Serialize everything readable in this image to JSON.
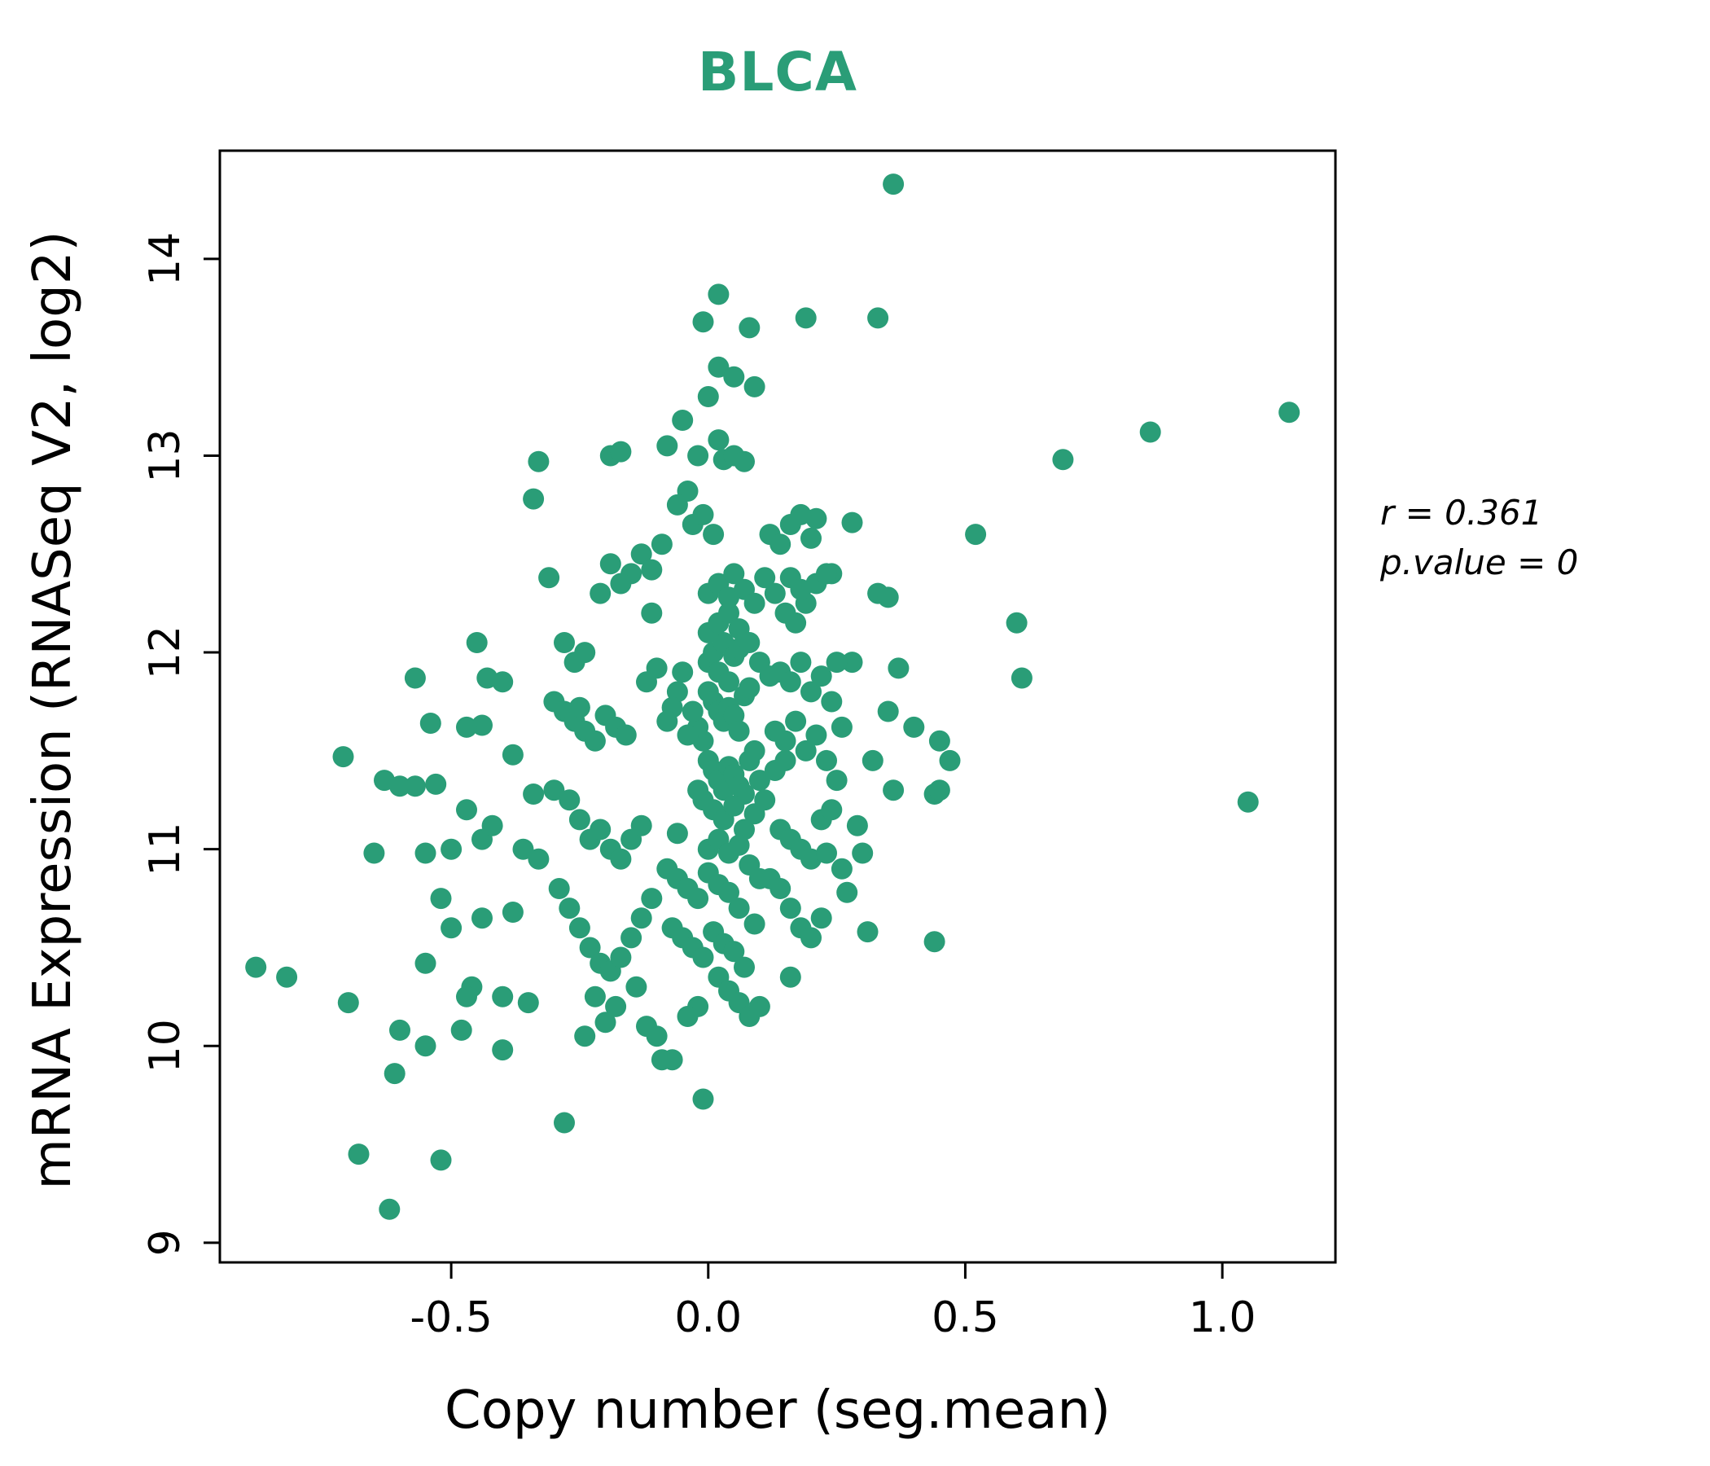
{
  "chart_data": {
    "type": "scatter",
    "title": "BLCA",
    "xlabel": "Copy number (seg.mean)",
    "ylabel": "mRNA Expression (RNASeq V2, log2)",
    "annotation_lines": [
      "r = 0.361",
      "p.value = 0"
    ],
    "r": 0.361,
    "p_value": 0,
    "point_color": "#2a9d77",
    "title_color": "#2a9d77",
    "xlim": [
      -0.95,
      1.22
    ],
    "ylim": [
      8.9,
      14.55
    ],
    "xticks": [
      -0.5,
      0.0,
      0.5,
      1.0
    ],
    "yticks": [
      9,
      10,
      11,
      12,
      13,
      14
    ],
    "grid": false,
    "legend": "none",
    "points": [
      [
        0.36,
        14.38
      ],
      [
        0.02,
        13.82
      ],
      [
        -0.01,
        13.68
      ],
      [
        0.19,
        13.7
      ],
      [
        0.33,
        13.7
      ],
      [
        0.08,
        13.65
      ],
      [
        0.02,
        13.45
      ],
      [
        0.05,
        13.4
      ],
      [
        0.09,
        13.35
      ],
      [
        1.13,
        13.22
      ],
      [
        0.86,
        13.12
      ],
      [
        0.69,
        12.98
      ],
      [
        -0.33,
        12.97
      ],
      [
        -0.34,
        12.78
      ],
      [
        -0.19,
        13.0
      ],
      [
        -0.17,
        13.02
      ],
      [
        -0.08,
        13.05
      ],
      [
        -0.02,
        13.0
      ],
      [
        0.02,
        13.08
      ],
      [
        0.03,
        12.98
      ],
      [
        0.05,
        13.0
      ],
      [
        0.07,
        12.97
      ],
      [
        -0.05,
        13.18
      ],
      [
        0.0,
        13.3
      ],
      [
        -0.04,
        12.82
      ],
      [
        -0.06,
        12.75
      ],
      [
        -0.03,
        12.65
      ],
      [
        -0.01,
        12.7
      ],
      [
        0.01,
        12.6
      ],
      [
        0.52,
        12.6
      ],
      [
        0.6,
        12.15
      ],
      [
        0.61,
        11.87
      ],
      [
        1.05,
        11.24
      ],
      [
        0.44,
        10.53
      ],
      [
        0.31,
        10.58
      ],
      [
        0.44,
        11.28
      ],
      [
        0.45,
        11.55
      ],
      [
        0.47,
        11.45
      ],
      [
        0.35,
        11.7
      ],
      [
        0.33,
        12.3
      ],
      [
        0.28,
        12.66
      ],
      [
        0.24,
        12.4
      ],
      [
        0.21,
        12.68
      ],
      [
        0.35,
        12.28
      ],
      [
        0.28,
        11.95
      ],
      [
        0.32,
        11.45
      ],
      [
        0.36,
        11.3
      ],
      [
        0.4,
        11.62
      ],
      [
        0.3,
        10.98
      ],
      [
        0.26,
        10.9
      ],
      [
        0.25,
        11.95
      ],
      [
        -0.71,
        11.47
      ],
      [
        -0.57,
        11.87
      ],
      [
        -0.54,
        11.64
      ],
      [
        -0.45,
        12.05
      ],
      [
        -0.44,
        11.63
      ],
      [
        -0.57,
        11.32
      ],
      [
        -0.53,
        11.33
      ],
      [
        -0.47,
        11.2
      ],
      [
        -0.5,
        11.0
      ],
      [
        -0.55,
        10.98
      ],
      [
        -0.44,
        11.05
      ],
      [
        -0.42,
        11.12
      ],
      [
        -0.38,
        11.48
      ],
      [
        -0.63,
        11.35
      ],
      [
        -0.6,
        11.32
      ],
      [
        -0.65,
        10.98
      ],
      [
        -0.52,
        10.75
      ],
      [
        -0.5,
        10.6
      ],
      [
        -0.55,
        10.42
      ],
      [
        -0.6,
        10.08
      ],
      [
        -0.47,
        11.62
      ],
      [
        -0.88,
        10.4
      ],
      [
        -0.82,
        10.35
      ],
      [
        -0.7,
        10.22
      ],
      [
        -0.68,
        9.45
      ],
      [
        -0.62,
        9.17
      ],
      [
        -0.61,
        9.86
      ],
      [
        -0.52,
        9.42
      ],
      [
        -0.55,
        10.0
      ],
      [
        -0.48,
        10.08
      ],
      [
        -0.46,
        10.3
      ],
      [
        -0.47,
        10.25
      ],
      [
        -0.4,
        9.98
      ],
      [
        -0.28,
        9.61
      ],
      [
        -0.01,
        9.73
      ],
      [
        -0.09,
        9.93
      ],
      [
        -0.12,
        10.1
      ],
      [
        -0.1,
        10.05
      ],
      [
        -0.24,
        10.05
      ],
      [
        -0.2,
        10.12
      ],
      [
        -0.35,
        10.22
      ],
      [
        -0.4,
        10.25
      ],
      [
        -0.36,
        11.0
      ],
      [
        -0.33,
        10.95
      ],
      [
        -0.38,
        10.68
      ],
      [
        -0.44,
        10.65
      ],
      [
        0.0,
        11.95
      ],
      [
        0.01,
        12.0
      ],
      [
        0.02,
        11.9
      ],
      [
        0.03,
        12.05
      ],
      [
        0.04,
        11.85
      ],
      [
        0.05,
        11.98
      ],
      [
        0.06,
        12.02
      ],
      [
        0.0,
        11.8
      ],
      [
        0.01,
        11.75
      ],
      [
        0.02,
        11.7
      ],
      [
        0.03,
        11.65
      ],
      [
        0.04,
        11.72
      ],
      [
        0.05,
        11.68
      ],
      [
        0.06,
        11.6
      ],
      [
        0.07,
        11.78
      ],
      [
        0.08,
        11.82
      ],
      [
        -0.01,
        11.55
      ],
      [
        -0.02,
        11.62
      ],
      [
        -0.03,
        11.7
      ],
      [
        -0.04,
        11.58
      ],
      [
        0.0,
        11.45
      ],
      [
        0.01,
        11.4
      ],
      [
        0.02,
        11.35
      ],
      [
        0.03,
        11.3
      ],
      [
        0.04,
        11.42
      ],
      [
        0.05,
        11.38
      ],
      [
        0.06,
        11.32
      ],
      [
        0.07,
        11.28
      ],
      [
        0.08,
        11.45
      ],
      [
        0.09,
        11.5
      ],
      [
        0.1,
        11.35
      ],
      [
        -0.01,
        11.25
      ],
      [
        -0.02,
        11.3
      ],
      [
        0.0,
        12.1
      ],
      [
        0.02,
        12.15
      ],
      [
        0.04,
        12.2
      ],
      [
        0.06,
        12.12
      ],
      [
        0.08,
        12.05
      ],
      [
        0.1,
        11.95
      ],
      [
        0.12,
        11.88
      ],
      [
        -0.05,
        11.9
      ],
      [
        -0.06,
        11.8
      ],
      [
        -0.07,
        11.72
      ],
      [
        -0.08,
        11.65
      ],
      [
        0.01,
        11.2
      ],
      [
        0.03,
        11.15
      ],
      [
        0.05,
        11.22
      ],
      [
        0.07,
        11.1
      ],
      [
        0.09,
        11.18
      ],
      [
        0.11,
        11.25
      ],
      [
        0.13,
        11.4
      ],
      [
        0.15,
        11.45
      ],
      [
        0.0,
        12.3
      ],
      [
        0.02,
        12.35
      ],
      [
        0.04,
        12.28
      ],
      [
        0.05,
        12.4
      ],
      [
        0.07,
        12.32
      ],
      [
        0.09,
        12.25
      ],
      [
        0.11,
        12.38
      ],
      [
        0.13,
        12.3
      ],
      [
        -0.3,
        11.75
      ],
      [
        -0.28,
        11.7
      ],
      [
        -0.26,
        11.65
      ],
      [
        -0.25,
        11.72
      ],
      [
        -0.24,
        11.6
      ],
      [
        -0.22,
        11.55
      ],
      [
        -0.2,
        11.68
      ],
      [
        -0.18,
        11.62
      ],
      [
        -0.16,
        11.58
      ],
      [
        -0.15,
        12.4
      ],
      [
        -0.17,
        12.35
      ],
      [
        -0.19,
        12.45
      ],
      [
        -0.21,
        12.3
      ],
      [
        -0.13,
        12.5
      ],
      [
        -0.11,
        12.42
      ],
      [
        -0.28,
        12.05
      ],
      [
        -0.26,
        11.95
      ],
      [
        -0.24,
        12.0
      ],
      [
        -0.3,
        11.3
      ],
      [
        -0.27,
        11.25
      ],
      [
        -0.25,
        11.15
      ],
      [
        -0.23,
        11.05
      ],
      [
        -0.21,
        11.1
      ],
      [
        -0.19,
        11.0
      ],
      [
        -0.17,
        10.95
      ],
      [
        -0.15,
        11.05
      ],
      [
        -0.13,
        11.12
      ],
      [
        -0.29,
        10.8
      ],
      [
        -0.27,
        10.7
      ],
      [
        -0.25,
        10.6
      ],
      [
        -0.23,
        10.5
      ],
      [
        -0.21,
        10.42
      ],
      [
        -0.19,
        10.38
      ],
      [
        -0.17,
        10.45
      ],
      [
        -0.15,
        10.55
      ],
      [
        -0.13,
        10.65
      ],
      [
        -0.11,
        10.75
      ],
      [
        -0.22,
        10.25
      ],
      [
        -0.18,
        10.2
      ],
      [
        -0.14,
        10.3
      ],
      [
        0.12,
        12.6
      ],
      [
        0.14,
        12.55
      ],
      [
        0.16,
        12.65
      ],
      [
        0.18,
        12.7
      ],
      [
        0.2,
        12.58
      ],
      [
        0.15,
        12.2
      ],
      [
        0.17,
        12.15
      ],
      [
        0.19,
        12.25
      ],
      [
        0.21,
        12.35
      ],
      [
        0.23,
        12.4
      ],
      [
        0.14,
        11.9
      ],
      [
        0.16,
        11.85
      ],
      [
        0.18,
        11.95
      ],
      [
        0.2,
        11.8
      ],
      [
        0.22,
        11.88
      ],
      [
        0.24,
        11.75
      ],
      [
        0.13,
        11.6
      ],
      [
        0.15,
        11.55
      ],
      [
        0.17,
        11.65
      ],
      [
        0.19,
        11.5
      ],
      [
        0.21,
        11.58
      ],
      [
        0.23,
        11.45
      ],
      [
        0.25,
        11.35
      ],
      [
        0.14,
        11.1
      ],
      [
        0.16,
        11.05
      ],
      [
        0.18,
        11.0
      ],
      [
        0.2,
        10.95
      ],
      [
        0.22,
        11.15
      ],
      [
        0.24,
        11.2
      ],
      [
        0.12,
        10.85
      ],
      [
        0.14,
        10.8
      ],
      [
        0.16,
        10.7
      ],
      [
        0.18,
        10.6
      ],
      [
        0.2,
        10.55
      ],
      [
        0.22,
        10.65
      ],
      [
        -0.08,
        10.9
      ],
      [
        -0.06,
        10.85
      ],
      [
        -0.04,
        10.8
      ],
      [
        -0.02,
        10.75
      ],
      [
        0.0,
        10.88
      ],
      [
        0.02,
        10.82
      ],
      [
        0.04,
        10.78
      ],
      [
        0.06,
        10.7
      ],
      [
        0.08,
        10.92
      ],
      [
        0.1,
        10.85
      ],
      [
        -0.07,
        10.6
      ],
      [
        -0.05,
        10.55
      ],
      [
        -0.03,
        10.5
      ],
      [
        -0.01,
        10.45
      ],
      [
        0.01,
        10.58
      ],
      [
        0.03,
        10.52
      ],
      [
        0.05,
        10.48
      ],
      [
        0.07,
        10.4
      ],
      [
        0.09,
        10.62
      ],
      [
        0.02,
        10.35
      ],
      [
        0.04,
        10.28
      ],
      [
        0.06,
        10.22
      ],
      [
        -0.02,
        10.2
      ],
      [
        -0.04,
        10.15
      ],
      [
        0.08,
        10.15
      ],
      [
        0.0,
        11.0
      ],
      [
        0.02,
        11.05
      ],
      [
        0.04,
        10.98
      ],
      [
        0.06,
        11.02
      ],
      [
        -0.06,
        11.08
      ],
      [
        -0.4,
        11.85
      ],
      [
        -0.43,
        11.87
      ],
      [
        -0.34,
        11.28
      ],
      [
        -0.31,
        12.38
      ],
      [
        -0.12,
        11.85
      ],
      [
        -0.1,
        11.92
      ],
      [
        -0.09,
        12.55
      ],
      [
        -0.11,
        12.2
      ],
      [
        0.16,
        12.38
      ],
      [
        0.18,
        12.32
      ],
      [
        0.26,
        11.62
      ],
      [
        0.29,
        11.12
      ],
      [
        0.16,
        10.35
      ],
      [
        0.1,
        10.2
      ],
      [
        -0.07,
        9.93
      ],
      [
        0.45,
        11.3
      ],
      [
        0.37,
        11.92
      ],
      [
        0.23,
        10.98
      ],
      [
        0.27,
        10.78
      ]
    ]
  },
  "layout_text": {
    "title": "BLCA",
    "x_axis_label": "Copy number (seg.mean)",
    "y_axis_label": "mRNA Expression (RNASeq V2, log2)",
    "annotation_line1": "r = 0.361",
    "annotation_line2": "p.value = 0"
  }
}
